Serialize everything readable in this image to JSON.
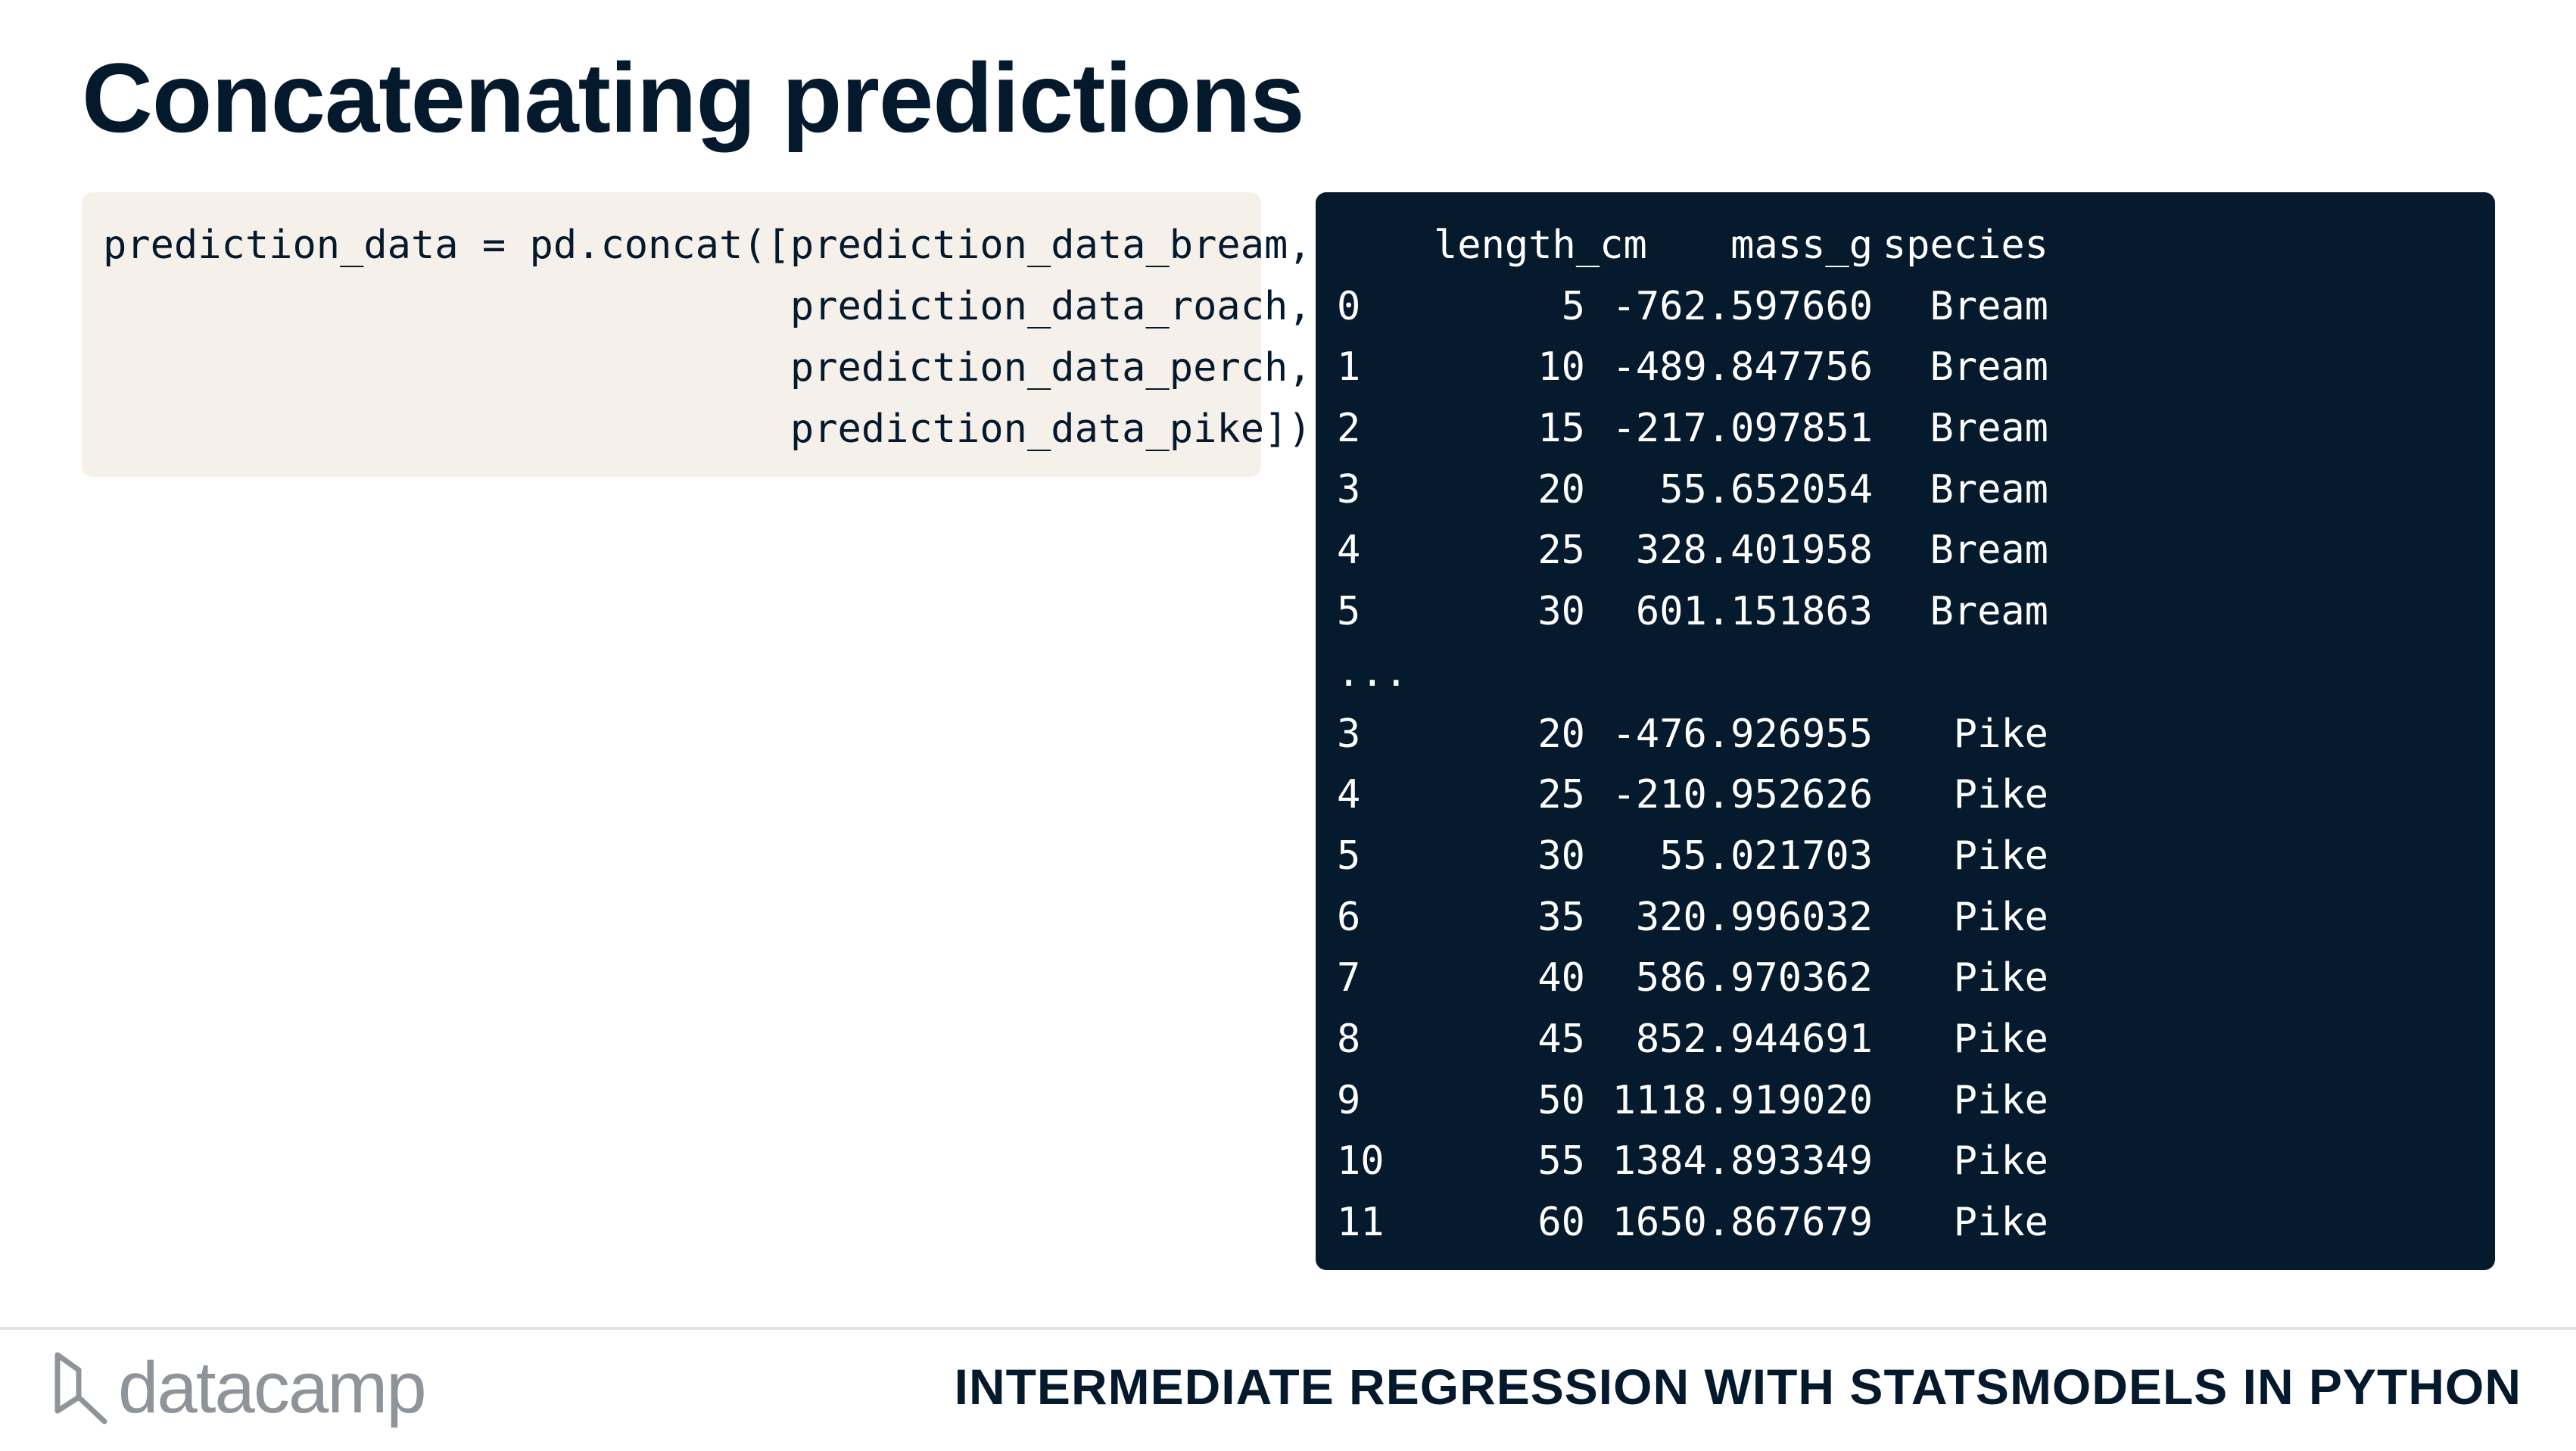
{
  "title": "Concatenating predictions",
  "code": {
    "lines": [
      "prediction_data = pd.concat([prediction_data_bream,",
      "                             prediction_data_roach,",
      "                             prediction_data_perch,",
      "                             prediction_data_pike])"
    ]
  },
  "output": {
    "columns": [
      "",
      "length_cm",
      "mass_g",
      "species"
    ],
    "rows": [
      [
        "0",
        "5",
        "-762.597660",
        "Bream"
      ],
      [
        "1",
        "10",
        "-489.847756",
        "Bream"
      ],
      [
        "2",
        "15",
        "-217.097851",
        "Bream"
      ],
      [
        "3",
        "20",
        "55.652054",
        "Bream"
      ],
      [
        "4",
        "25",
        "328.401958",
        "Bream"
      ],
      [
        "5",
        "30",
        "601.151863",
        "Bream"
      ],
      [
        "...",
        "",
        "",
        ""
      ],
      [
        "3",
        "20",
        "-476.926955",
        "Pike"
      ],
      [
        "4",
        "25",
        "-210.952626",
        "Pike"
      ],
      [
        "5",
        "30",
        "55.021703",
        "Pike"
      ],
      [
        "6",
        "35",
        "320.996032",
        "Pike"
      ],
      [
        "7",
        "40",
        "586.970362",
        "Pike"
      ],
      [
        "8",
        "45",
        "852.944691",
        "Pike"
      ],
      [
        "9",
        "50",
        "1118.919020",
        "Pike"
      ],
      [
        "10",
        "55",
        "1384.893349",
        "Pike"
      ],
      [
        "11",
        "60",
        "1650.867679",
        "Pike"
      ]
    ]
  },
  "footer": {
    "logo_text": "datacamp",
    "course_title": "INTERMEDIATE REGRESSION WITH STATSMODELS IN PYTHON"
  },
  "colors": {
    "navy": "#05192d",
    "code_bg": "#f5f1ea",
    "output_bg": "#061a2e",
    "logo_gray": "#8e949a"
  }
}
